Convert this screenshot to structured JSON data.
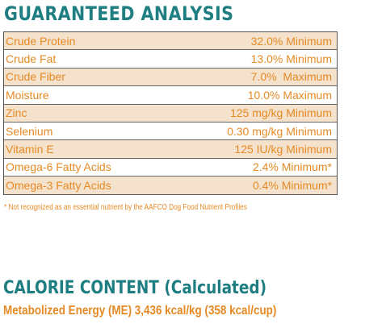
{
  "title": "GUARANTEED ANALYSIS",
  "analysis": [
    {
      "name": "Crude Protein",
      "value": "32.0% Minimum"
    },
    {
      "name": "Crude Fat",
      "value": "13.0% Minimum"
    },
    {
      "name": "Crude Fiber",
      "value": "7.0%  Maximum"
    },
    {
      "name": "Moisture",
      "value": "10.0% Maximum"
    },
    {
      "name": "Zinc",
      "value": "125 mg/kg Minimum"
    },
    {
      "name": "Selenium",
      "value": "0.30 mg/kg Minimum"
    },
    {
      "name": "Vitamin E",
      "value": "125 IU/kg Minimum"
    },
    {
      "name": "Omega-6 Fatty Acids",
      "value": "2.4% Minimum*"
    },
    {
      "name": "Omega-3 Fatty Acids",
      "value": "0.4% Minimum*"
    }
  ],
  "footnote": "* Not recognized as an essential nutrient by the AAFCO Dog Food Nutrient Profiles",
  "calorie_title": "CALORIE CONTENT (Calculated)",
  "calorie_line": "Metabolized Energy (ME) 3,436 kcal/kg (358 kcal/cup)",
  "colors": {
    "teal": "#1f7e82",
    "orange": "#e58a24",
    "row_tint": "#f5e2cd"
  }
}
